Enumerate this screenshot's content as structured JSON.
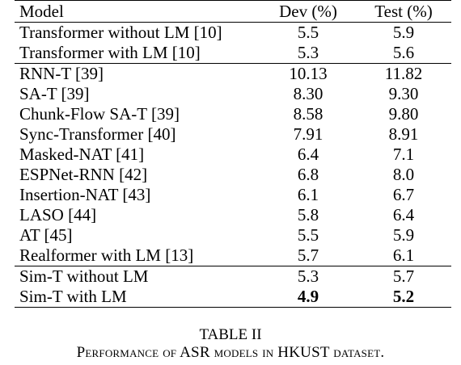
{
  "table": {
    "headers": {
      "model": "Model",
      "dev": "Dev (%)",
      "test": "Test (%)"
    },
    "group1": [
      {
        "model": "Transformer without LM [10]",
        "dev": "5.5",
        "test": "5.9"
      },
      {
        "model": "Transformer with LM [10]",
        "dev": "5.3",
        "test": "5.6"
      }
    ],
    "group2": [
      {
        "model": "RNN-T [39]",
        "dev": "10.13",
        "test": "11.82"
      },
      {
        "model": "SA-T [39]",
        "dev": "8.30",
        "test": "9.30"
      },
      {
        "model": "Chunk-Flow SA-T [39]",
        "dev": "8.58",
        "test": "9.80"
      },
      {
        "model": "Sync-Transformer [40]",
        "dev": "7.91",
        "test": "8.91"
      },
      {
        "model": "Masked-NAT [41]",
        "dev": "6.4",
        "test": "7.1"
      },
      {
        "model": "ESPNet-RNN [42]",
        "dev": "6.8",
        "test": "8.0"
      },
      {
        "model": "Insertion-NAT [43]",
        "dev": "6.1",
        "test": "6.7"
      },
      {
        "model": "LASO [44]",
        "dev": "5.8",
        "test": "6.4"
      },
      {
        "model": "AT [45]",
        "dev": "5.5",
        "test": "5.9"
      },
      {
        "model": "Realformer with LM [13]",
        "dev": "5.7",
        "test": "6.1"
      }
    ],
    "group3": [
      {
        "model": "Sim-T without LM",
        "dev": "5.3",
        "test": "5.7"
      },
      {
        "model": "Sim-T with LM",
        "dev": "4.9",
        "test": "5.2"
      }
    ]
  },
  "caption": {
    "title": "TABLE II",
    "description": "Performance of ASR models in HKUST dataset."
  }
}
